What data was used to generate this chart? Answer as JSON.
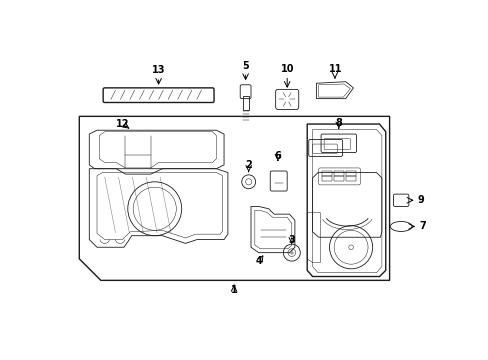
{
  "bg_color": "#ffffff",
  "line_color": "#1a1a1a",
  "lw_main": 1.0,
  "lw_thin": 0.6,
  "lw_light": 0.35
}
